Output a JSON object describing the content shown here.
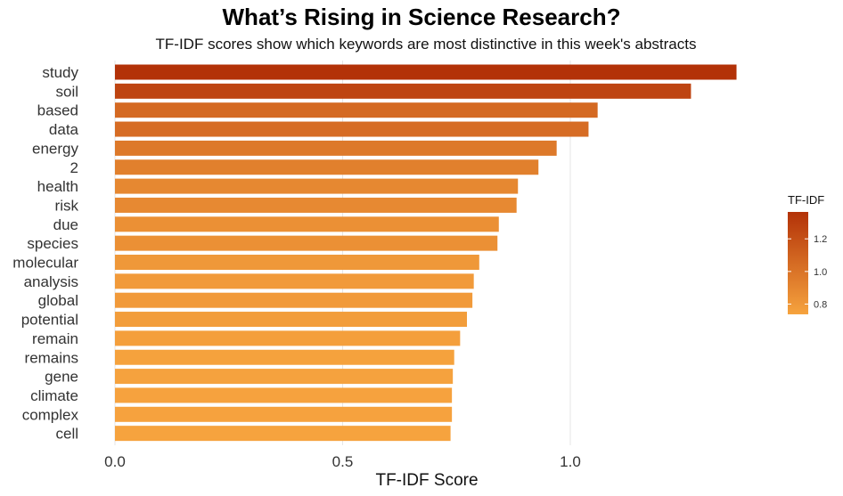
{
  "chart_data": {
    "type": "bar",
    "orientation": "horizontal",
    "title": "What’s Rising in Science Research?",
    "subtitle": "TF-IDF scores show which keywords are most distinctive in this week's abstracts",
    "xlabel": "TF-IDF Score",
    "ylabel": "",
    "xlim": [
      0,
      1.37
    ],
    "x_ticks": [
      0.0,
      0.5,
      1.0
    ],
    "x_tick_labels": [
      "0.0",
      "0.5",
      "1.0"
    ],
    "grid": "vertical major",
    "categories": [
      "study",
      "soil",
      "based",
      "data",
      "energy",
      "2",
      "health",
      "risk",
      "due",
      "species",
      "molecular",
      "analysis",
      "global",
      "potential",
      "remain",
      "remains",
      "gene",
      "climate",
      "complex",
      "cell"
    ],
    "values": [
      1.365,
      1.265,
      1.06,
      1.04,
      0.97,
      0.93,
      0.885,
      0.882,
      0.843,
      0.84,
      0.8,
      0.788,
      0.785,
      0.773,
      0.758,
      0.745,
      0.742,
      0.74,
      0.74,
      0.737
    ],
    "legend": {
      "title": "TF-IDF",
      "position": "right",
      "ticks": [
        0.8,
        1.0,
        1.2
      ],
      "tick_labels": [
        "0.8",
        "1.0",
        "1.2"
      ],
      "low_color": "#f6a33e",
      "high_color": "#b33208",
      "range": [
        0.737,
        1.365
      ]
    }
  }
}
